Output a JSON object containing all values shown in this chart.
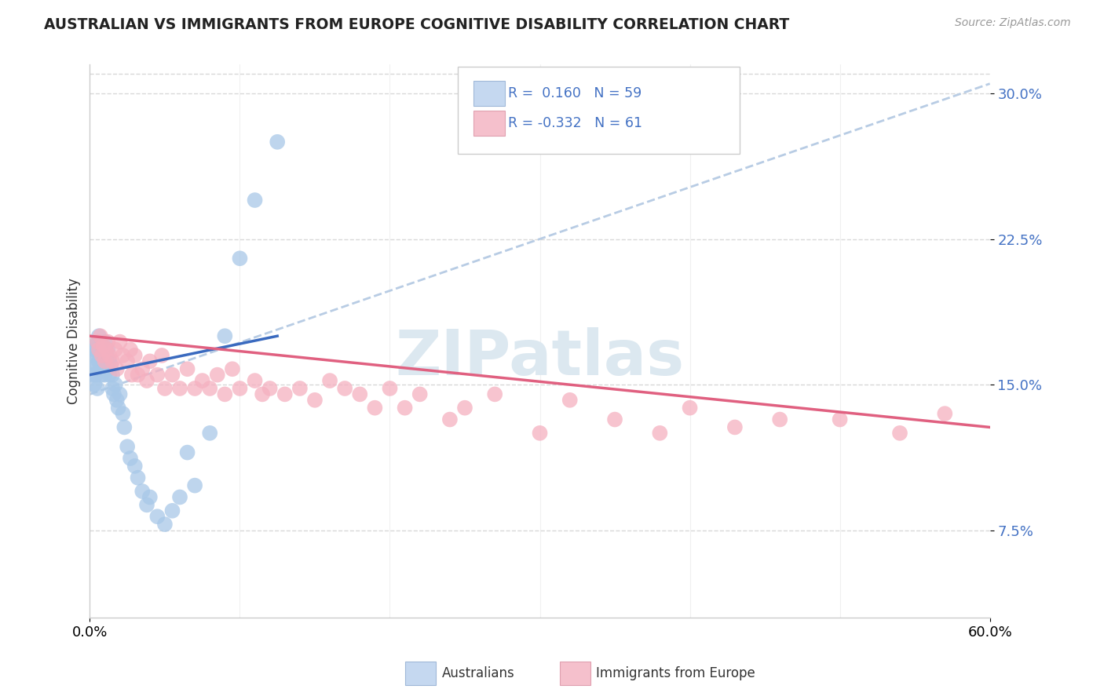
{
  "title": "AUSTRALIAN VS IMMIGRANTS FROM EUROPE COGNITIVE DISABILITY CORRELATION CHART",
  "source": "Source: ZipAtlas.com",
  "ylabel": "Cognitive Disability",
  "xmin": 0.0,
  "xmax": 0.6,
  "ymin": 0.03,
  "ymax": 0.315,
  "yticks": [
    0.075,
    0.15,
    0.225,
    0.3
  ],
  "ytick_labels": [
    "7.5%",
    "15.0%",
    "22.5%",
    "30.0%"
  ],
  "r_australian": 0.16,
  "n_australian": 59,
  "r_europe": -0.332,
  "n_europe": 61,
  "scatter_color_australian": "#a8c8e8",
  "scatter_color_europe": "#f5b0c0",
  "line_color_australian": "#3a6abf",
  "line_color_europe": "#e06080",
  "dashed_line_color": "#b8cce4",
  "background_color": "#ffffff",
  "grid_color": "#d8d8d8",
  "watermark_text": "ZIPatlas",
  "watermark_color": "#dce8f0",
  "legend_box_color_aus": "#c5d8f0",
  "legend_box_color_eur": "#f5c0cc",
  "aus_x": [
    0.002,
    0.002,
    0.003,
    0.003,
    0.004,
    0.004,
    0.004,
    0.005,
    0.005,
    0.005,
    0.005,
    0.006,
    0.006,
    0.006,
    0.007,
    0.007,
    0.007,
    0.008,
    0.008,
    0.008,
    0.009,
    0.009,
    0.01,
    0.01,
    0.01,
    0.011,
    0.011,
    0.012,
    0.012,
    0.013,
    0.013,
    0.014,
    0.015,
    0.015,
    0.016,
    0.017,
    0.018,
    0.019,
    0.02,
    0.022,
    0.023,
    0.025,
    0.027,
    0.03,
    0.032,
    0.035,
    0.038,
    0.04,
    0.045,
    0.05,
    0.055,
    0.06,
    0.065,
    0.07,
    0.08,
    0.09,
    0.1,
    0.11,
    0.125
  ],
  "aus_y": [
    0.155,
    0.165,
    0.15,
    0.168,
    0.16,
    0.17,
    0.155,
    0.165,
    0.172,
    0.16,
    0.148,
    0.162,
    0.168,
    0.175,
    0.158,
    0.165,
    0.16,
    0.155,
    0.162,
    0.17,
    0.165,
    0.158,
    0.168,
    0.172,
    0.155,
    0.162,
    0.165,
    0.158,
    0.168,
    0.162,
    0.155,
    0.16,
    0.148,
    0.155,
    0.145,
    0.15,
    0.142,
    0.138,
    0.145,
    0.135,
    0.128,
    0.118,
    0.112,
    0.108,
    0.102,
    0.095,
    0.088,
    0.092,
    0.082,
    0.078,
    0.085,
    0.092,
    0.115,
    0.098,
    0.125,
    0.175,
    0.215,
    0.245,
    0.275
  ],
  "eur_x": [
    0.005,
    0.006,
    0.007,
    0.008,
    0.009,
    0.01,
    0.011,
    0.012,
    0.013,
    0.015,
    0.017,
    0.018,
    0.02,
    0.022,
    0.025,
    0.027,
    0.028,
    0.03,
    0.032,
    0.035,
    0.038,
    0.04,
    0.045,
    0.048,
    0.05,
    0.055,
    0.06,
    0.065,
    0.07,
    0.075,
    0.08,
    0.085,
    0.09,
    0.095,
    0.1,
    0.11,
    0.115,
    0.12,
    0.13,
    0.14,
    0.15,
    0.16,
    0.17,
    0.18,
    0.19,
    0.2,
    0.21,
    0.22,
    0.24,
    0.25,
    0.27,
    0.3,
    0.32,
    0.35,
    0.38,
    0.4,
    0.43,
    0.46,
    0.5,
    0.54,
    0.57
  ],
  "eur_y": [
    0.172,
    0.168,
    0.175,
    0.165,
    0.17,
    0.162,
    0.168,
    0.172,
    0.165,
    0.162,
    0.168,
    0.158,
    0.172,
    0.165,
    0.162,
    0.168,
    0.155,
    0.165,
    0.155,
    0.158,
    0.152,
    0.162,
    0.155,
    0.165,
    0.148,
    0.155,
    0.148,
    0.158,
    0.148,
    0.152,
    0.148,
    0.155,
    0.145,
    0.158,
    0.148,
    0.152,
    0.145,
    0.148,
    0.145,
    0.148,
    0.142,
    0.152,
    0.148,
    0.145,
    0.138,
    0.148,
    0.138,
    0.145,
    0.132,
    0.138,
    0.145,
    0.125,
    0.142,
    0.132,
    0.125,
    0.138,
    0.128,
    0.132,
    0.132,
    0.125,
    0.135
  ],
  "aus_line_x": [
    0.0,
    0.125
  ],
  "aus_line_y": [
    0.155,
    0.175
  ],
  "eur_line_x": [
    0.0,
    0.6
  ],
  "eur_line_y": [
    0.175,
    0.128
  ],
  "dash_line_x": [
    0.0,
    0.6
  ],
  "dash_line_y": [
    0.145,
    0.305
  ]
}
